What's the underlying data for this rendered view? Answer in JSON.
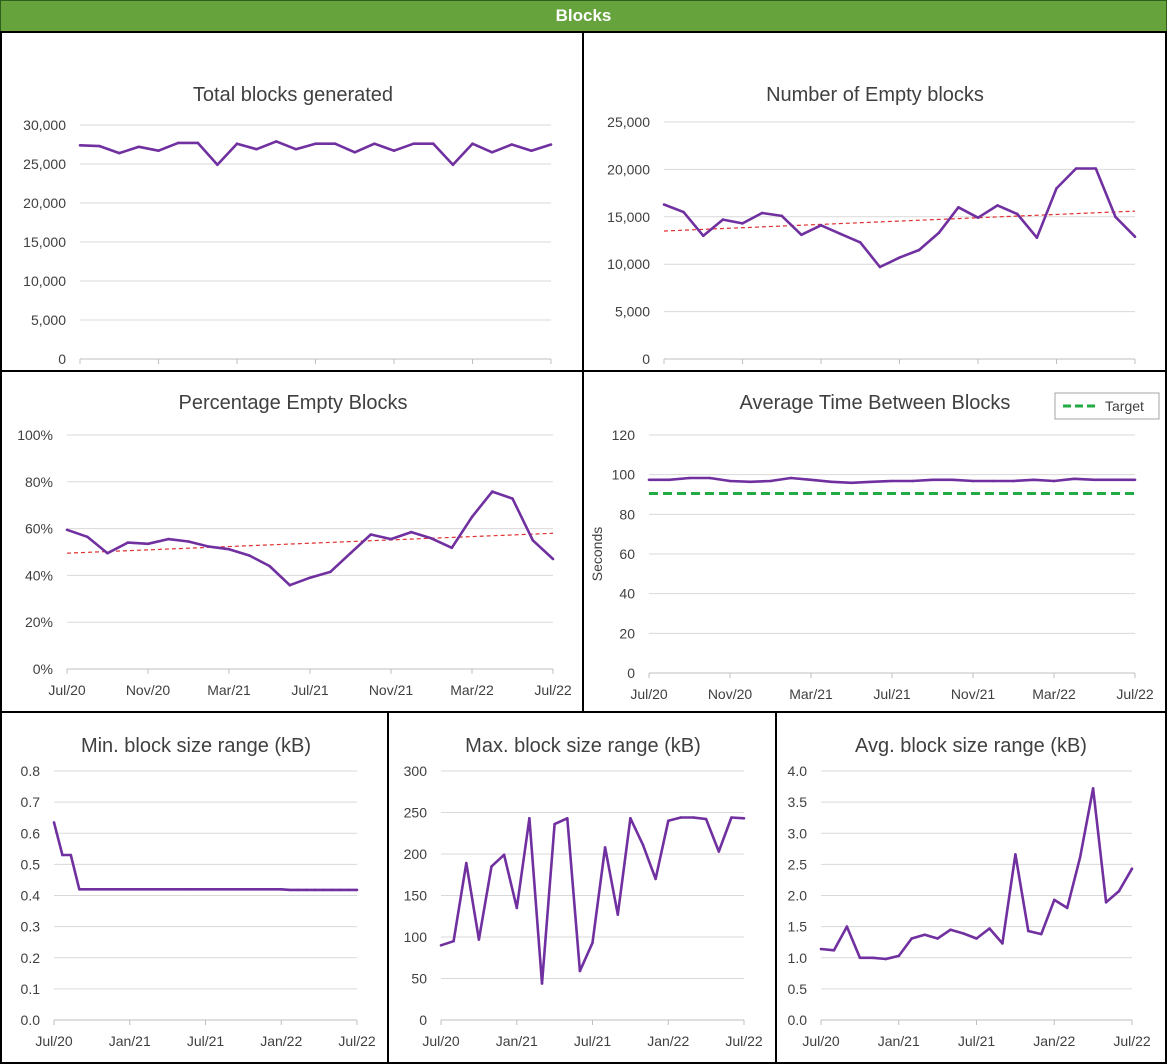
{
  "header": {
    "title": "Blocks"
  },
  "colors": {
    "line": "#7030a0",
    "trend": "#e03030",
    "target": "#22aa44",
    "grid": "#d9d9d9",
    "banner": "#66a33d"
  },
  "chart_data": [
    {
      "id": "total",
      "type": "line",
      "title": "Total blocks generated",
      "xlabels": [
        "Jul/20",
        "Nov/20",
        "Mar/21",
        "Jul/21",
        "Nov/21",
        "Mar/22",
        "Jul/22"
      ],
      "yticks": [
        "0",
        "5,000",
        "10,000",
        "15,000",
        "20,000",
        "25,000",
        "30,000"
      ],
      "ylim": [
        0,
        30000
      ],
      "series": [
        {
          "name": "Total blocks",
          "values": [
            27400,
            27300,
            26400,
            27200,
            26700,
            27700,
            27700,
            24900,
            27600,
            26900,
            27900,
            26900,
            27600,
            27600,
            26500,
            27600,
            26700,
            27600,
            27600,
            24900,
            27600,
            26500,
            27500,
            26700,
            27500
          ]
        }
      ]
    },
    {
      "id": "empty",
      "type": "line",
      "title": "Number of Empty blocks",
      "xlabels": [
        "Jul/20",
        "Nov/20",
        "Mar/21",
        "Jul/21",
        "Nov/21",
        "Mar/22",
        "Jul/22"
      ],
      "yticks": [
        "0",
        "5,000",
        "10,000",
        "15,000",
        "20,000",
        "25,000"
      ],
      "ylim": [
        0,
        25000
      ],
      "series": [
        {
          "name": "Empty blocks",
          "values": [
            16300,
            15500,
            13000,
            14700,
            14300,
            15400,
            15100,
            13100,
            14100,
            13200,
            12300,
            9700,
            10700,
            11500,
            13300,
            16000,
            14900,
            16200,
            15300,
            12800,
            18000,
            20100,
            20100,
            15000,
            12900
          ]
        }
      ],
      "trend": [
        13500,
        15600
      ]
    },
    {
      "id": "pct",
      "type": "line",
      "title": "Percentage Empty Blocks",
      "xlabels": [
        "Jul/20",
        "Nov/20",
        "Mar/21",
        "Jul/21",
        "Nov/21",
        "Mar/22",
        "Jul/22"
      ],
      "yticks": [
        "0%",
        "20%",
        "40%",
        "60%",
        "80%",
        "100%"
      ],
      "ylim": [
        0,
        100
      ],
      "series": [
        {
          "name": "Percentage empty",
          "values": [
            59.5,
            56.5,
            49.5,
            54,
            53.5,
            55.5,
            54.5,
            52.3,
            51.2,
            48.5,
            44,
            35.8,
            39,
            41.5,
            49.5,
            57.5,
            55.5,
            58.5,
            55.8,
            51.8,
            65,
            75.8,
            72.8,
            55,
            47
          ]
        }
      ],
      "trend": [
        49.5,
        58
      ]
    },
    {
      "id": "avgtime",
      "type": "line",
      "title": "Average Time Between Blocks",
      "ylabel": "Seconds",
      "legend": {
        "label": "Target",
        "position": "top-right"
      },
      "xlabels": [
        "Jul/20",
        "Nov/20",
        "Mar/21",
        "Jul/21",
        "Nov/21",
        "Mar/22",
        "Jul/22"
      ],
      "yticks": [
        "0",
        "20",
        "40",
        "60",
        "80",
        "100",
        "120"
      ],
      "ylim": [
        0,
        120
      ],
      "series": [
        {
          "name": "Average time",
          "values": [
            97.4,
            97.4,
            98.3,
            98.3,
            96.8,
            96.4,
            96.8,
            98.3,
            97.4,
            96.4,
            95.9,
            96.4,
            96.8,
            96.8,
            97.4,
            97.4,
            96.8,
            96.8,
            96.8,
            97.4,
            96.8,
            97.9,
            97.4,
            97.4,
            97.4
          ]
        }
      ],
      "target": 90.5
    },
    {
      "id": "minsize",
      "type": "line",
      "title": "Min. block size range (kB)",
      "xlabels": [
        "Jul/20",
        "Jan/21",
        "Jul/21",
        "Jan/22",
        "Jul/22"
      ],
      "yticks": [
        "0.0",
        "0.1",
        "0.2",
        "0.3",
        "0.4",
        "0.5",
        "0.6",
        "0.7",
        "0.8"
      ],
      "ylim": [
        0,
        0.8
      ],
      "series": [
        {
          "name": "Min size",
          "values": [
            0.635,
            0.53,
            0.53,
            0.42,
            0.42,
            0.42,
            0.42,
            0.42,
            0.42,
            0.42,
            0.42,
            0.42,
            0.42,
            0.42,
            0.42,
            0.42,
            0.42,
            0.42,
            0.42,
            0.42,
            0.42,
            0.42,
            0.42,
            0.42,
            0.42,
            0.42,
            0.42,
            0.42,
            0.418,
            0.418,
            0.418,
            0.418,
            0.418,
            0.418,
            0.418,
            0.418,
            0.418
          ]
        }
      ]
    },
    {
      "id": "maxsize",
      "type": "line",
      "title": "Max. block size range (kB)",
      "xlabels": [
        "Jul/20",
        "Jan/21",
        "Jul/21",
        "Jan/22",
        "Jul/22"
      ],
      "yticks": [
        "0",
        "50",
        "100",
        "150",
        "200",
        "250",
        "300"
      ],
      "ylim": [
        0,
        300
      ],
      "series": [
        {
          "name": "Max size",
          "values": [
            90,
            95,
            189,
            97,
            185,
            199,
            135,
            243,
            44,
            236,
            243,
            59,
            93,
            208,
            127,
            243,
            211,
            170,
            240,
            244,
            244,
            242,
            203,
            244,
            243
          ]
        }
      ]
    },
    {
      "id": "avgsize",
      "type": "line",
      "title": "Avg. block size range (kB)",
      "xlabels": [
        "Jul/20",
        "Jan/21",
        "Jul/21",
        "Jan/22",
        "Jul/22"
      ],
      "yticks": [
        "0.0",
        "0.5",
        "1.0",
        "1.5",
        "2.0",
        "2.5",
        "3.0",
        "3.5",
        "4.0"
      ],
      "ylim": [
        0,
        4
      ],
      "series": [
        {
          "name": "Avg size",
          "values": [
            1.14,
            1.12,
            1.5,
            1.0,
            1.0,
            0.98,
            1.03,
            1.31,
            1.37,
            1.31,
            1.45,
            1.39,
            1.31,
            1.47,
            1.23,
            2.66,
            1.43,
            1.38,
            1.93,
            1.8,
            2.62,
            3.72,
            1.89,
            2.07,
            2.43
          ]
        }
      ]
    }
  ]
}
